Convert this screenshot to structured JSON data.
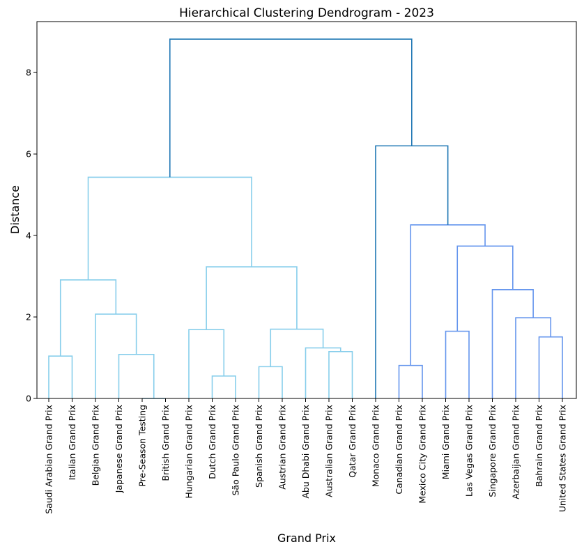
{
  "chart_data": {
    "type": "dendrogram",
    "title": "Hierarchical Clustering Dendrogram - 2023",
    "xlabel": "Grand Prix",
    "ylabel": "Distance",
    "ylim": [
      0,
      9.25
    ],
    "yticks": [
      0,
      2,
      4,
      6,
      8
    ],
    "grid": false,
    "leaves": [
      "Saudi Arabian Grand Prix",
      "Italian Grand Prix",
      "Belgian Grand Prix",
      "Japanese Grand Prix",
      "Pre-Season Testing",
      "British Grand Prix",
      "Hungarian Grand Prix",
      "Dutch Grand Prix",
      "São Paulo Grand Prix",
      "Spanish Grand Prix",
      "Austrian Grand Prix",
      "Abu Dhabi Grand Prix",
      "Australian Grand Prix",
      "Qatar Grand Prix",
      "Monaco Grand Prix",
      "Canadian Grand Prix",
      "Mexico City Grand Prix",
      "Miami Grand Prix",
      "Las Vegas Grand Prix",
      "Singapore Grand Prix",
      "Azerbaijan Grand Prix",
      "Bahrain Grand Prix",
      "United States Grand Prix"
    ],
    "colors": {
      "cluster_a": "#87ceeb",
      "cluster_b": "#6495ed",
      "above_threshold": "#1f77b4"
    },
    "merges": [
      {
        "left": {
          "leaf": 0
        },
        "right": {
          "leaf": 1
        },
        "height": 1.04,
        "color": "cluster_a"
      },
      {
        "left": {
          "leaf": 4
        },
        "right": {
          "leaf": 5
        },
        "height": 0.0,
        "color": "cluster_a"
      },
      {
        "left": {
          "leaf": 3
        },
        "right": {
          "merge": 1
        },
        "height": 1.08,
        "color": "cluster_a"
      },
      {
        "left": {
          "leaf": 2
        },
        "right": {
          "merge": 2
        },
        "height": 2.07,
        "color": "cluster_a"
      },
      {
        "left": {
          "merge": 0
        },
        "right": {
          "merge": 3
        },
        "height": 2.91,
        "color": "cluster_a"
      },
      {
        "left": {
          "leaf": 7
        },
        "right": {
          "leaf": 8
        },
        "height": 0.55,
        "color": "cluster_a"
      },
      {
        "left": {
          "leaf": 6
        },
        "right": {
          "merge": 5
        },
        "height": 1.69,
        "color": "cluster_a"
      },
      {
        "left": {
          "leaf": 9
        },
        "right": {
          "leaf": 10
        },
        "height": 0.78,
        "color": "cluster_a"
      },
      {
        "left": {
          "leaf": 12
        },
        "right": {
          "leaf": 13
        },
        "height": 1.15,
        "color": "cluster_a"
      },
      {
        "left": {
          "leaf": 11
        },
        "right": {
          "merge": 8
        },
        "height": 1.24,
        "color": "cluster_a"
      },
      {
        "left": {
          "merge": 7
        },
        "right": {
          "merge": 9
        },
        "height": 1.7,
        "color": "cluster_a"
      },
      {
        "left": {
          "merge": 6
        },
        "right": {
          "merge": 10
        },
        "height": 3.23,
        "color": "cluster_a"
      },
      {
        "left": {
          "merge": 4
        },
        "right": {
          "merge": 11
        },
        "height": 5.43,
        "color": "cluster_a"
      },
      {
        "left": {
          "leaf": 15
        },
        "right": {
          "leaf": 16
        },
        "height": 0.81,
        "color": "cluster_b"
      },
      {
        "left": {
          "leaf": 17
        },
        "right": {
          "leaf": 18
        },
        "height": 1.65,
        "color": "cluster_b"
      },
      {
        "left": {
          "leaf": 21
        },
        "right": {
          "leaf": 22
        },
        "height": 1.51,
        "color": "cluster_b"
      },
      {
        "left": {
          "leaf": 20
        },
        "right": {
          "merge": 15
        },
        "height": 1.98,
        "color": "cluster_b"
      },
      {
        "left": {
          "leaf": 19
        },
        "right": {
          "merge": 16
        },
        "height": 2.67,
        "color": "cluster_b"
      },
      {
        "left": {
          "merge": 14
        },
        "right": {
          "merge": 17
        },
        "height": 3.74,
        "color": "cluster_b"
      },
      {
        "left": {
          "merge": 13
        },
        "right": {
          "merge": 18
        },
        "height": 4.26,
        "color": "cluster_b"
      },
      {
        "left": {
          "leaf": 14
        },
        "right": {
          "merge": 19
        },
        "height": 6.2,
        "color": "above_threshold"
      },
      {
        "left": {
          "merge": 12
        },
        "right": {
          "merge": 20
        },
        "height": 8.82,
        "color": "above_threshold"
      }
    ]
  }
}
